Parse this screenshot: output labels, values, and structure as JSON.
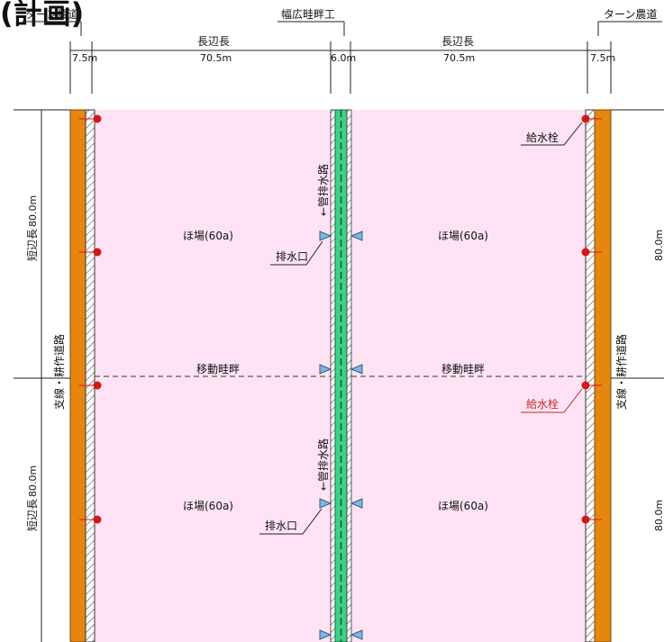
{
  "title": "(計画)",
  "top_labels": {
    "turn_road_left": "ターン農道",
    "wide_ridge": "幅広畦畔工",
    "turn_road_right": "ターン農道"
  },
  "dimensions": {
    "long_side_left": "長辺長",
    "long_side_right": "長辺長",
    "width_left_road": "7.5m",
    "width_left_field": "70.5m",
    "width_center": "6.0m",
    "width_right_field": "70.5m",
    "width_right_road": "7.5m",
    "short_side_upper": "短辺長",
    "short_side_upper_value": "80.0m",
    "short_side_lower": "短辺長",
    "short_side_lower_value": "80.0m",
    "right_upper_value": "80.0m",
    "right_lower_value": "80.0m"
  },
  "fields": {
    "upper_left": "ほ場(60a)",
    "upper_right": "ほ場(60a)",
    "lower_left": "ほ場(60a)",
    "lower_right": "ほ場(60a)"
  },
  "annotations": {
    "drain_outlet_upper": "排水口",
    "drain_outlet_lower": "排水口",
    "pipe_drain_upper": "←管排水路",
    "pipe_drain_lower": "←管排水路",
    "movable_ridge_left": "移動畦畔",
    "movable_ridge_right": "移動畦畔",
    "hydrant_upper": "給水栓",
    "hydrant_lower": "給水栓",
    "branch_road_left": "支線・耕作道路",
    "branch_road_right": "支線・耕作道路"
  },
  "colors": {
    "field": "#ffe3f5",
    "road": "#e6860f",
    "drain": "#3fd08b",
    "hydrant": "#d01818",
    "outlet": "#7fb6dc",
    "highlight_label": "#c62828"
  }
}
